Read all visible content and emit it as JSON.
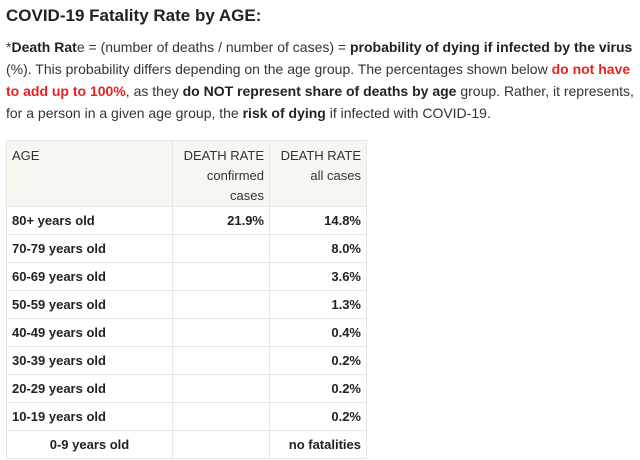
{
  "title": "COVID-19 Fatality Rate by AGE:",
  "intro": {
    "prefix_star": "*",
    "death_rate_bold": "Death Rat",
    "death_rate_plain": "e",
    "formula": " = (number of deaths / number of cases) = ",
    "probability_bold": "probability of dying if infected by the virus",
    "after_probability": " (%). This probability differs depending on the age group. The percentages shown below ",
    "red_text": "do not have to add up to 100%",
    "after_red": ", as they ",
    "not_share_bold": "do NOT represent share of deaths by age",
    "after_not_share": " group. Rather, it represents, for a person in a given age group, the ",
    "risk_bold": "risk of dying",
    "after_risk": " if infected with COVID-19."
  },
  "colors": {
    "accent_red": "#e8231f",
    "header_bg": "#f7f6f0",
    "border": "#e6e6e6"
  },
  "table": {
    "headers": {
      "age": "AGE",
      "confirmed_line1": "DEATH RATE",
      "confirmed_line2": "confirmed",
      "confirmed_line3": "cases",
      "all_line1": "DEATH RATE",
      "all_line2": "all cases"
    },
    "rows": [
      {
        "age": "80+ years old",
        "confirmed": "21.9%",
        "all": "14.8%"
      },
      {
        "age": "70-79 years old",
        "confirmed": "",
        "all": "8.0%"
      },
      {
        "age": "60-69 years old",
        "confirmed": "",
        "all": "3.6%"
      },
      {
        "age": "50-59 years old",
        "confirmed": "",
        "all": "1.3%"
      },
      {
        "age": "40-49 years old",
        "confirmed": "",
        "all": "0.4%"
      },
      {
        "age": "30-39 years old",
        "confirmed": "",
        "all": "0.2%"
      },
      {
        "age": "20-29 years old",
        "confirmed": "",
        "all": "0.2%"
      },
      {
        "age": "10-19 years old",
        "confirmed": "",
        "all": "0.2%"
      },
      {
        "age": "0-9 years old",
        "confirmed": "",
        "all": "no fatalities"
      }
    ]
  }
}
